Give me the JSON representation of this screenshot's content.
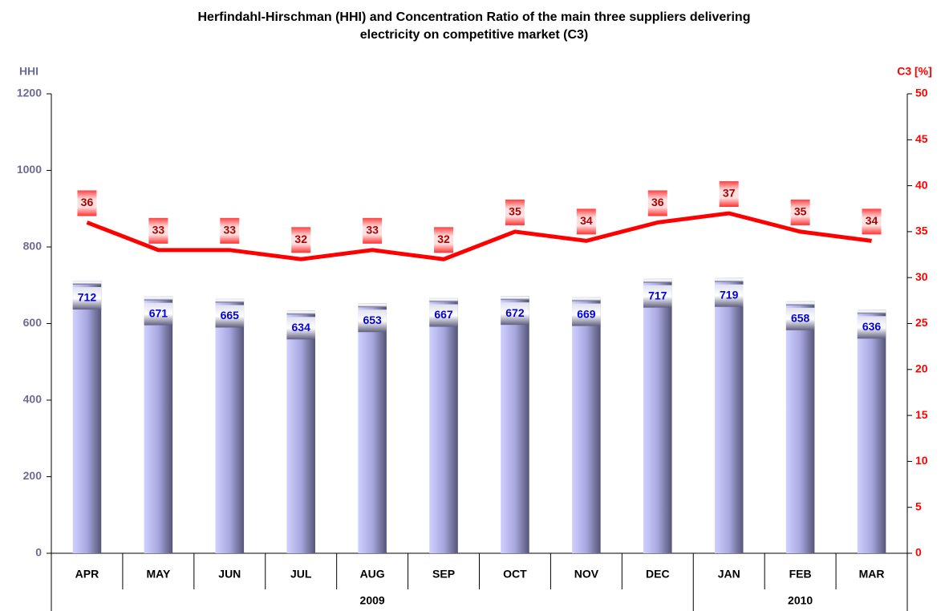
{
  "chart_data": {
    "type": "bar_line",
    "title": "Herfindahl-Hirschman (HHI) and Concentration Ratio of the main three suppliers delivering",
    "title_line2": "electricity on competitive market (C3)",
    "y_label": "HHI",
    "y2_label": "C3 [%]",
    "categories": [
      "APR",
      "MAY",
      "JUN",
      "JUL",
      "AUG",
      "SEP",
      "OCT",
      "NOV",
      "DEC",
      "JAN",
      "FEB",
      "MAR"
    ],
    "category_groups": [
      "2009",
      "2009",
      "2009",
      "2009",
      "2009",
      "2009",
      "2009",
      "2009",
      "2009",
      "2010",
      "2010",
      "2010"
    ],
    "series": [
      {
        "name": "HHI",
        "type": "bar",
        "color": "#a8a8e8",
        "values": [
          712,
          671,
          665,
          634,
          653,
          667,
          672,
          669,
          717,
          719,
          658,
          636
        ]
      },
      {
        "name": "C3",
        "type": "line",
        "axis": "y2",
        "color": "#ff0000",
        "values": [
          36,
          33,
          33,
          32,
          33,
          32,
          35,
          34,
          36,
          37,
          35,
          34
        ]
      }
    ],
    "ylim": [
      0,
      1200
    ],
    "yticks": [
      0,
      200,
      400,
      600,
      800,
      1000,
      1200
    ],
    "y2lim": [
      0,
      50
    ],
    "y2ticks": [
      0,
      5,
      10,
      15,
      20,
      25,
      30,
      35,
      40,
      45,
      50
    ]
  }
}
